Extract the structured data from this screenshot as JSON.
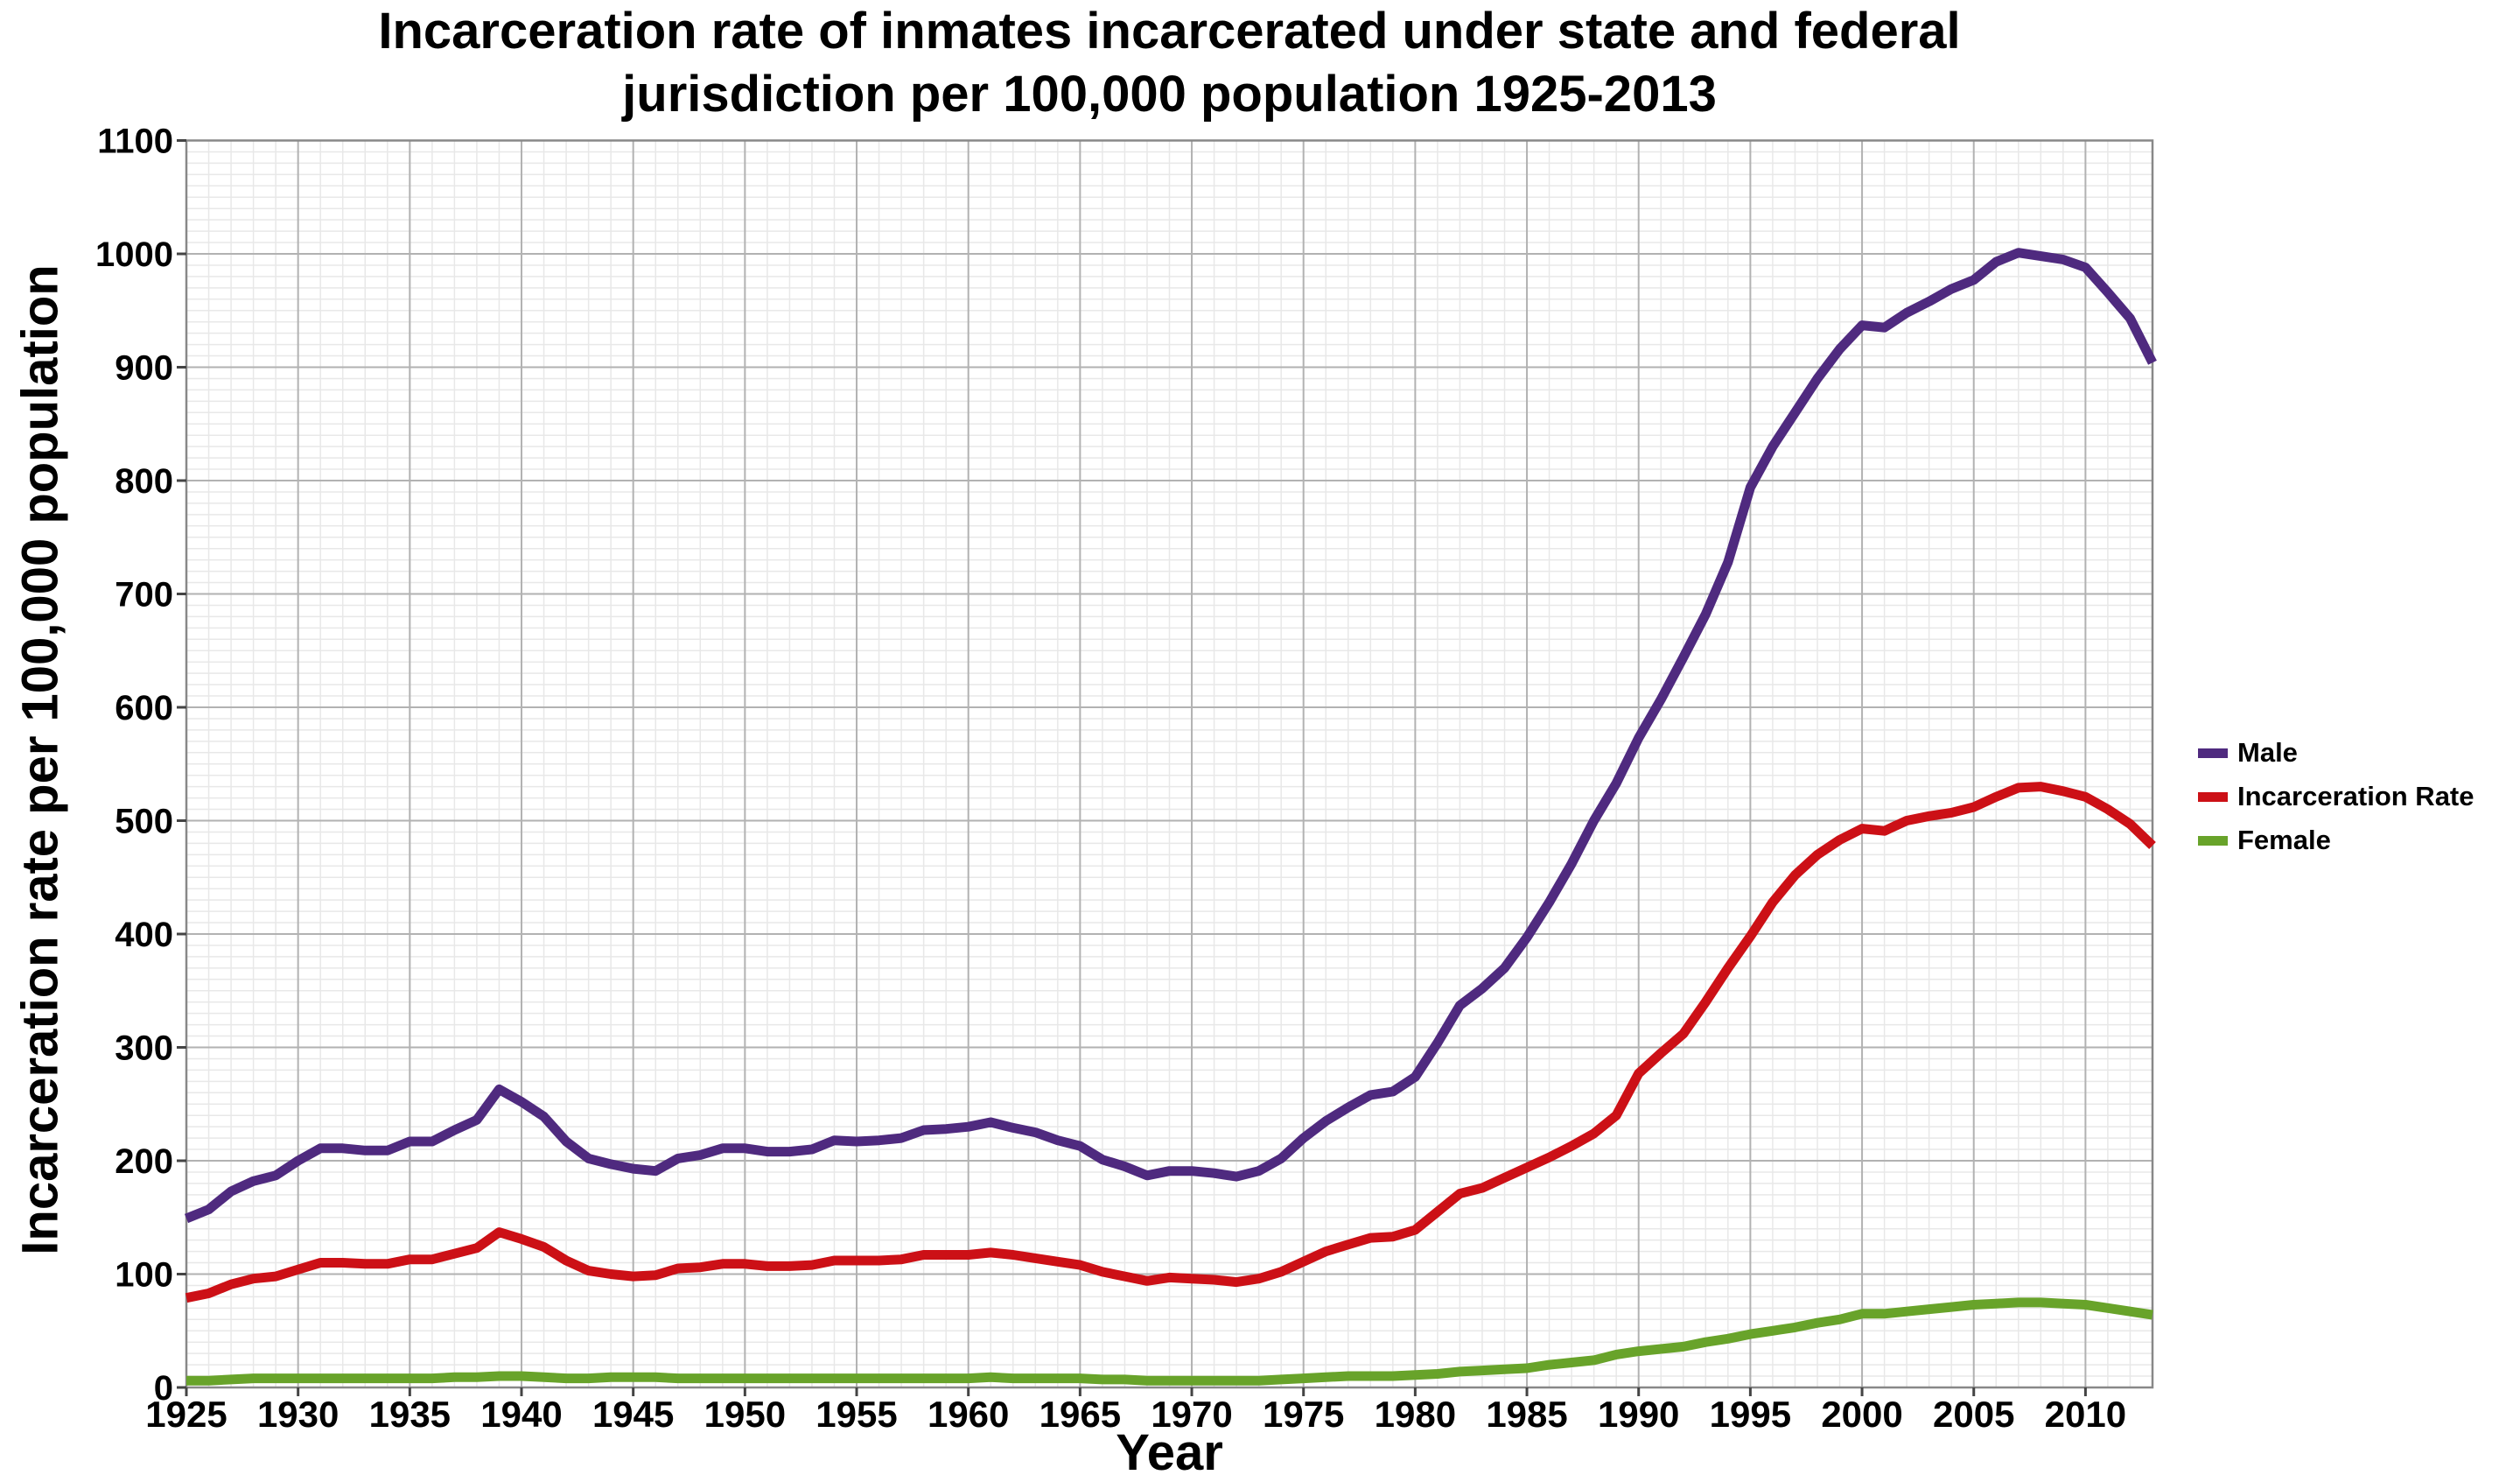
{
  "title": {
    "line1": "Incarceration rate of inmates incarcerated under state and federal",
    "line2": "jurisdiction per 100,000 population 1925-2013"
  },
  "axes": {
    "x_label": "Year",
    "y_label": "Incarceration rate per 100,000 population"
  },
  "legend": [
    {
      "label": "Male",
      "color": "#4f2a7f"
    },
    {
      "label": "Incarceration Rate",
      "color": "#cc1016"
    },
    {
      "label": "Female",
      "color": "#68a32a"
    }
  ],
  "colors": {
    "background": "#ffffff",
    "minor_grid": "#e8e8e8",
    "major_grid": "#b2b2b2",
    "border": "#888888",
    "tick": "#444444",
    "text": "#000000"
  },
  "chart_data": {
    "type": "line",
    "title": "Incarceration rate of inmates incarcerated under state and federal jurisdiction per 100,000 population 1925-2013",
    "xlabel": "Year",
    "ylabel": "Incarceration rate per 100,000 population",
    "xlim": [
      1925,
      2013
    ],
    "ylim": [
      0,
      1100
    ],
    "x_ticks": [
      1925,
      1930,
      1935,
      1940,
      1945,
      1950,
      1955,
      1960,
      1965,
      1970,
      1975,
      1980,
      1985,
      1990,
      1995,
      2000,
      2005,
      2010
    ],
    "y_ticks": [
      0,
      100,
      200,
      300,
      400,
      500,
      600,
      700,
      800,
      900,
      1000,
      1100
    ],
    "x_minor_step": 1,
    "y_minor_step": 10,
    "grid": true,
    "legend_position": "right",
    "x": [
      1925,
      1926,
      1927,
      1928,
      1929,
      1930,
      1931,
      1932,
      1933,
      1934,
      1935,
      1936,
      1937,
      1938,
      1939,
      1940,
      1941,
      1942,
      1943,
      1944,
      1945,
      1946,
      1947,
      1948,
      1949,
      1950,
      1951,
      1952,
      1953,
      1954,
      1955,
      1956,
      1957,
      1958,
      1959,
      1960,
      1961,
      1962,
      1963,
      1964,
      1965,
      1966,
      1967,
      1968,
      1969,
      1970,
      1971,
      1972,
      1973,
      1974,
      1975,
      1976,
      1977,
      1978,
      1979,
      1980,
      1981,
      1982,
      1983,
      1984,
      1985,
      1986,
      1987,
      1988,
      1989,
      1990,
      1991,
      1992,
      1993,
      1994,
      1995,
      1996,
      1997,
      1998,
      1999,
      2000,
      2001,
      2002,
      2003,
      2004,
      2005,
      2006,
      2007,
      2008,
      2009,
      2010,
      2011,
      2012,
      2013
    ],
    "series": [
      {
        "name": "Male",
        "color": "#4f2a7f",
        "values": [
          149,
          157,
          173,
          182,
          187,
          200,
          211,
          211,
          209,
          209,
          217,
          217,
          227,
          236,
          263,
          252,
          239,
          217,
          202,
          197,
          193,
          191,
          202,
          205,
          211,
          211,
          208,
          208,
          210,
          218,
          217,
          218,
          220,
          227,
          228,
          230,
          234,
          229,
          225,
          218,
          213,
          201,
          195,
          187,
          191,
          191,
          189,
          186,
          191,
          202,
          220,
          235,
          247,
          258,
          261,
          274,
          304,
          337,
          352,
          370,
          397,
          428,
          462,
          500,
          533,
          573,
          607,
          644,
          682,
          728,
          794,
          830,
          860,
          890,
          916,
          937,
          935,
          948,
          958,
          969,
          977,
          993,
          1001,
          998,
          995,
          988,
          966,
          943,
          904
        ]
      },
      {
        "name": "Incarceration Rate",
        "color": "#cc1016",
        "values": [
          79,
          83,
          91,
          96,
          98,
          104,
          110,
          110,
          109,
          109,
          113,
          113,
          118,
          123,
          137,
          131,
          124,
          112,
          103,
          100,
          98,
          99,
          105,
          106,
          109,
          109,
          107,
          107,
          108,
          112,
          112,
          112,
          113,
          117,
          117,
          117,
          119,
          117,
          114,
          111,
          108,
          102,
          98,
          94,
          97,
          96,
          95,
          93,
          96,
          102,
          111,
          120,
          126,
          132,
          133,
          139,
          155,
          171,
          176,
          185,
          194,
          203,
          213,
          224,
          240,
          277,
          295,
          312,
          340,
          370,
          398,
          428,
          452,
          470,
          483,
          493,
          491,
          500,
          504,
          507,
          512,
          521,
          529,
          530,
          526,
          521,
          510,
          497,
          478
        ]
      },
      {
        "name": "Female",
        "color": "#68a32a",
        "values": [
          6,
          6,
          7,
          8,
          8,
          8,
          8,
          8,
          8,
          8,
          8,
          8,
          9,
          9,
          10,
          10,
          9,
          8,
          8,
          9,
          9,
          9,
          8,
          8,
          8,
          8,
          8,
          8,
          8,
          8,
          8,
          8,
          8,
          8,
          8,
          8,
          9,
          8,
          8,
          8,
          8,
          7,
          7,
          6,
          6,
          6,
          6,
          6,
          6,
          7,
          8,
          9,
          10,
          10,
          10,
          11,
          12,
          14,
          15,
          16,
          17,
          20,
          22,
          24,
          29,
          32,
          34,
          36,
          40,
          43,
          47,
          50,
          53,
          57,
          60,
          65,
          65,
          67,
          69,
          71,
          73,
          74,
          75,
          75,
          74,
          73,
          70,
          67,
          64
        ]
      }
    ]
  }
}
